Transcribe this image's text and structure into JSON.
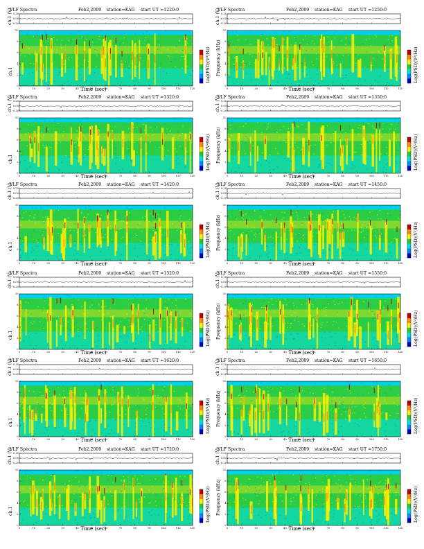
{
  "figure": {
    "title": "VLF Spectra",
    "date": "Feb2,2009",
    "station": "station=KAG",
    "ut_prefix": "start  UT",
    "xlabel": "Time  (sec)",
    "ylabel_top": "ch.1 (V)",
    "ylabel_spec": "ch.1",
    "ylabel_freq": "Frequency  (kHz)",
    "cbar_label": "Log(PSD)(V²/Hz)"
  },
  "panels": [
    {
      "ut": "=1220:0",
      "ylabel_mode": "ch1"
    },
    {
      "ut": "=1250:0",
      "ylabel_mode": "freq"
    },
    {
      "ut": "=1320:0",
      "ylabel_mode": "ch1"
    },
    {
      "ut": "=1350:0",
      "ylabel_mode": "freq"
    },
    {
      "ut": "=1420:0",
      "ylabel_mode": "ch1"
    },
    {
      "ut": "=1450:0",
      "ylabel_mode": "freq"
    },
    {
      "ut": "=1520:0",
      "ylabel_mode": "ch1"
    },
    {
      "ut": "=1550:0",
      "ylabel_mode": "freq"
    },
    {
      "ut": "=1620:0",
      "ylabel_mode": "ch1"
    },
    {
      "ut": "=1650:0",
      "ylabel_mode": "freq"
    },
    {
      "ut": "=1720:0",
      "ylabel_mode": "ch1"
    },
    {
      "ut": "=1750:0",
      "ylabel_mode": "freq"
    }
  ],
  "chart_data": {
    "type": "heatmap",
    "x_ticks": [
      "0",
      "10",
      "20",
      "30",
      "40",
      "50",
      "60",
      "70",
      "80",
      "90",
      "100",
      "110",
      "120"
    ],
    "xlim": [
      0,
      120
    ],
    "y_ticks_freq": [
      "0",
      "2",
      "4",
      "6",
      "8",
      "10"
    ],
    "ylim_freq": [
      0,
      10
    ],
    "y_ticks_wave": [
      "0.20",
      "0.00",
      "-0.20"
    ],
    "ylim_wave": [
      -0.2,
      0.2
    ],
    "colormap": [
      "#0000c0",
      "#0088ff",
      "#00e0e0",
      "#22cc33",
      "#ffee00",
      "#ff8800",
      "#c00000"
    ],
    "background_color": "#2ccc45"
  }
}
